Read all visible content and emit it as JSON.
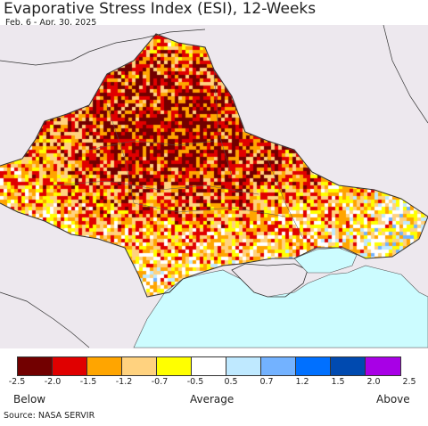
{
  "title": "Evaporative Stress Index (ESI), 12-Weeks",
  "subtitle": "Feb. 6 - Apr. 30, 2025",
  "legend": {
    "colors": [
      "#720000",
      "#e00000",
      "#ffa500",
      "#ffd27f",
      "#ffff00",
      "#ffffff",
      "#bfe9ff",
      "#73b2ff",
      "#0070ff",
      "#004ab0",
      "#a800e6"
    ],
    "ticks": [
      "-2.5",
      "-2.0",
      "-1.5",
      "-1.2",
      "-0.7",
      "-0.5",
      "0.5",
      "0.7",
      "1.2",
      "1.5",
      "2.0",
      "2.5"
    ],
    "below_label": "Below",
    "average_label": "Average",
    "above_label": "Above"
  },
  "map": {
    "sea_color": "#ccfcff",
    "outside_color": "#ede8ee",
    "dominant_categories": [
      "-2.5 to -2.0",
      "-2.0 to -1.5",
      "-1.5 to -1.2",
      "-1.2 to -0.7",
      "-0.7 to -0.5"
    ]
  },
  "source": "Source: NASA SERVIR"
}
